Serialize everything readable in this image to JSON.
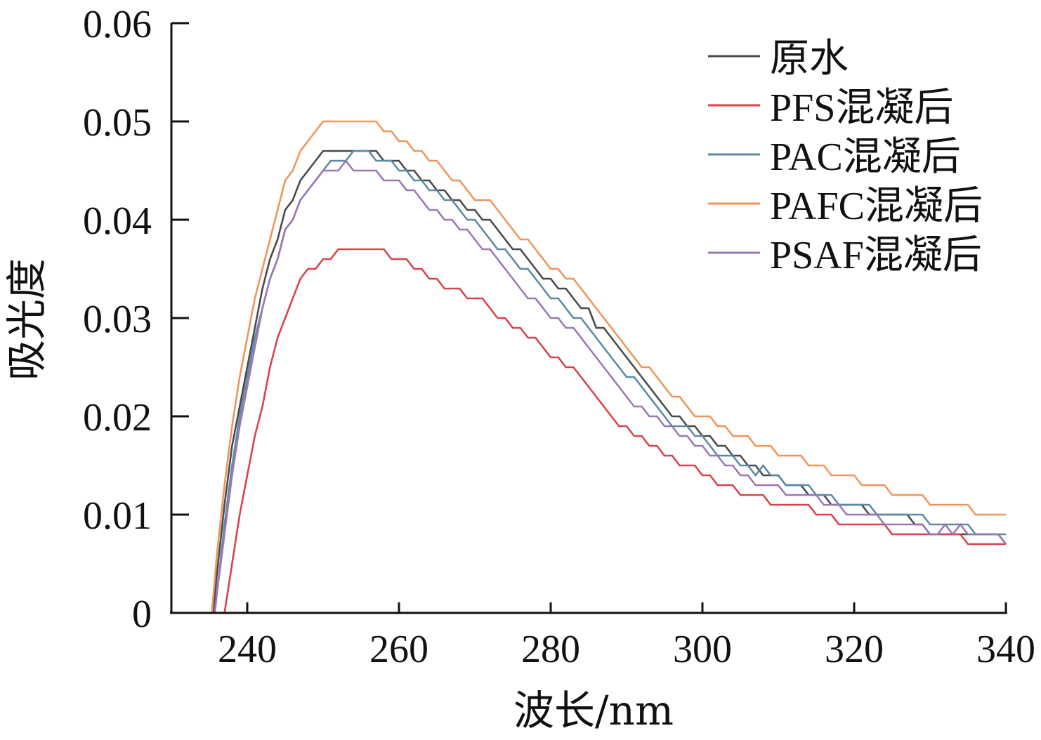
{
  "chart_data": {
    "type": "line",
    "title": "",
    "xlabel": "波长/nm",
    "ylabel": "吸光度",
    "xlim": [
      230,
      340
    ],
    "ylim": [
      0,
      0.06
    ],
    "xticks": [
      240,
      260,
      280,
      300,
      320,
      340
    ],
    "xtick_labels": [
      "240",
      "260",
      "280",
      "300",
      "320",
      "340"
    ],
    "yticks": [
      0,
      0.01,
      0.02,
      0.03,
      0.04,
      0.05,
      0.06
    ],
    "ytick_labels": [
      "0",
      "0.01",
      "0.02",
      "0.03",
      "0.04",
      "0.05",
      "0.06"
    ],
    "grid": false,
    "legend_position": "top-right",
    "x": [
      235,
      236,
      237,
      238,
      239,
      240,
      241,
      242,
      243,
      244,
      245,
      246,
      247,
      248,
      249,
      250,
      251,
      252,
      253,
      254,
      255,
      256,
      257,
      258,
      259,
      260,
      261,
      262,
      263,
      264,
      265,
      266,
      267,
      268,
      269,
      270,
      271,
      272,
      273,
      274,
      275,
      276,
      277,
      278,
      279,
      280,
      281,
      282,
      283,
      284,
      285,
      286,
      287,
      288,
      289,
      290,
      291,
      292,
      293,
      294,
      295,
      296,
      297,
      298,
      299,
      300,
      301,
      302,
      303,
      304,
      305,
      306,
      307,
      308,
      309,
      310,
      311,
      312,
      313,
      314,
      315,
      316,
      317,
      318,
      319,
      320,
      321,
      322,
      323,
      324,
      325,
      326,
      327,
      328,
      329,
      330,
      331,
      332,
      333,
      334,
      335,
      336,
      337,
      338,
      339,
      340
    ],
    "series": [
      {
        "name": "原水",
        "color": "#4a4a4a",
        "values": [
          -0.004,
          0.004,
          0.011,
          0.017,
          0.021,
          0.025,
          0.029,
          0.033,
          0.036,
          0.038,
          0.041,
          0.042,
          0.044,
          0.045,
          0.046,
          0.047,
          0.047,
          0.047,
          0.047,
          0.047,
          0.047,
          0.047,
          0.047,
          0.046,
          0.046,
          0.046,
          0.045,
          0.045,
          0.044,
          0.044,
          0.043,
          0.043,
          0.042,
          0.042,
          0.041,
          0.041,
          0.04,
          0.04,
          0.039,
          0.038,
          0.037,
          0.037,
          0.036,
          0.035,
          0.034,
          0.034,
          0.033,
          0.033,
          0.032,
          0.031,
          0.031,
          0.029,
          0.029,
          0.028,
          0.027,
          0.026,
          0.025,
          0.024,
          0.023,
          0.022,
          0.021,
          0.02,
          0.02,
          0.019,
          0.019,
          0.018,
          0.018,
          0.017,
          0.017,
          0.016,
          0.016,
          0.015,
          0.015,
          0.014,
          0.014,
          0.014,
          0.013,
          0.013,
          0.013,
          0.012,
          0.012,
          0.012,
          0.011,
          0.011,
          0.011,
          0.011,
          0.011,
          0.01,
          0.01,
          0.01,
          0.01,
          0.01,
          0.01,
          0.009,
          0.009,
          0.008,
          0.008,
          0.008,
          0.008,
          0.008,
          0.008,
          0.008,
          0.008,
          0.008,
          0.008,
          0.007
        ]
      },
      {
        "name": "PFS混凝后",
        "color": "#d9444a",
        "values": [
          -0.01,
          -0.005,
          0.0,
          0.005,
          0.01,
          0.014,
          0.018,
          0.021,
          0.025,
          0.028,
          0.03,
          0.032,
          0.034,
          0.035,
          0.035,
          0.036,
          0.036,
          0.037,
          0.037,
          0.037,
          0.037,
          0.037,
          0.037,
          0.037,
          0.036,
          0.036,
          0.036,
          0.035,
          0.035,
          0.034,
          0.034,
          0.033,
          0.033,
          0.033,
          0.032,
          0.032,
          0.032,
          0.031,
          0.03,
          0.03,
          0.029,
          0.029,
          0.028,
          0.028,
          0.027,
          0.026,
          0.026,
          0.025,
          0.025,
          0.024,
          0.023,
          0.022,
          0.021,
          0.02,
          0.019,
          0.019,
          0.018,
          0.018,
          0.017,
          0.017,
          0.016,
          0.016,
          0.015,
          0.015,
          0.015,
          0.014,
          0.014,
          0.013,
          0.013,
          0.013,
          0.012,
          0.012,
          0.012,
          0.012,
          0.011,
          0.011,
          0.011,
          0.011,
          0.011,
          0.011,
          0.01,
          0.01,
          0.01,
          0.009,
          0.009,
          0.009,
          0.009,
          0.009,
          0.009,
          0.009,
          0.008,
          0.008,
          0.008,
          0.008,
          0.008,
          0.008,
          0.008,
          0.008,
          0.008,
          0.008,
          0.007,
          0.007,
          0.007,
          0.007,
          0.007,
          0.007
        ]
      },
      {
        "name": "PAC混凝后",
        "color": "#5b8aa6",
        "values": [
          -0.005,
          0.002,
          0.009,
          0.015,
          0.02,
          0.024,
          0.028,
          0.031,
          0.034,
          0.036,
          0.039,
          0.04,
          0.042,
          0.043,
          0.044,
          0.045,
          0.046,
          0.046,
          0.046,
          0.047,
          0.047,
          0.047,
          0.046,
          0.046,
          0.046,
          0.045,
          0.045,
          0.044,
          0.044,
          0.043,
          0.043,
          0.042,
          0.042,
          0.041,
          0.04,
          0.04,
          0.039,
          0.038,
          0.037,
          0.037,
          0.036,
          0.035,
          0.035,
          0.034,
          0.033,
          0.032,
          0.032,
          0.031,
          0.03,
          0.03,
          0.029,
          0.028,
          0.027,
          0.026,
          0.025,
          0.024,
          0.024,
          0.023,
          0.022,
          0.021,
          0.02,
          0.019,
          0.019,
          0.019,
          0.018,
          0.018,
          0.017,
          0.016,
          0.016,
          0.016,
          0.015,
          0.015,
          0.014,
          0.015,
          0.014,
          0.014,
          0.013,
          0.013,
          0.013,
          0.013,
          0.012,
          0.012,
          0.012,
          0.011,
          0.011,
          0.011,
          0.011,
          0.011,
          0.01,
          0.01,
          0.01,
          0.01,
          0.01,
          0.01,
          0.01,
          0.009,
          0.009,
          0.009,
          0.009,
          0.009,
          0.009,
          0.008,
          0.008,
          0.008,
          0.008,
          0.008
        ]
      },
      {
        "name": "PAFC混凝后",
        "color": "#f0955a",
        "values": [
          -0.003,
          0.006,
          0.013,
          0.019,
          0.024,
          0.028,
          0.032,
          0.035,
          0.038,
          0.041,
          0.044,
          0.045,
          0.047,
          0.048,
          0.049,
          0.05,
          0.05,
          0.05,
          0.05,
          0.05,
          0.05,
          0.05,
          0.05,
          0.049,
          0.049,
          0.048,
          0.048,
          0.047,
          0.047,
          0.046,
          0.046,
          0.045,
          0.044,
          0.044,
          0.043,
          0.042,
          0.042,
          0.042,
          0.041,
          0.04,
          0.039,
          0.038,
          0.038,
          0.037,
          0.036,
          0.035,
          0.035,
          0.034,
          0.034,
          0.033,
          0.032,
          0.031,
          0.03,
          0.029,
          0.028,
          0.027,
          0.026,
          0.025,
          0.025,
          0.024,
          0.023,
          0.022,
          0.022,
          0.021,
          0.02,
          0.02,
          0.02,
          0.019,
          0.019,
          0.018,
          0.018,
          0.018,
          0.017,
          0.017,
          0.017,
          0.016,
          0.016,
          0.016,
          0.016,
          0.015,
          0.015,
          0.015,
          0.014,
          0.014,
          0.014,
          0.014,
          0.013,
          0.013,
          0.013,
          0.013,
          0.012,
          0.012,
          0.012,
          0.012,
          0.012,
          0.011,
          0.011,
          0.011,
          0.011,
          0.011,
          0.011,
          0.01,
          0.01,
          0.01,
          0.01,
          0.01
        ]
      },
      {
        "name": "PSAF混凝后",
        "color": "#9a78b4",
        "values": [
          -0.005,
          0.002,
          0.008,
          0.014,
          0.019,
          0.023,
          0.027,
          0.031,
          0.034,
          0.036,
          0.039,
          0.04,
          0.042,
          0.043,
          0.044,
          0.045,
          0.045,
          0.045,
          0.046,
          0.045,
          0.045,
          0.045,
          0.045,
          0.044,
          0.044,
          0.044,
          0.043,
          0.043,
          0.042,
          0.041,
          0.041,
          0.04,
          0.04,
          0.039,
          0.039,
          0.038,
          0.037,
          0.037,
          0.036,
          0.035,
          0.034,
          0.033,
          0.032,
          0.032,
          0.031,
          0.03,
          0.03,
          0.029,
          0.029,
          0.028,
          0.027,
          0.026,
          0.025,
          0.024,
          0.023,
          0.022,
          0.021,
          0.021,
          0.02,
          0.02,
          0.019,
          0.019,
          0.018,
          0.018,
          0.017,
          0.017,
          0.016,
          0.016,
          0.015,
          0.015,
          0.014,
          0.014,
          0.013,
          0.013,
          0.013,
          0.013,
          0.012,
          0.012,
          0.012,
          0.012,
          0.012,
          0.011,
          0.011,
          0.011,
          0.01,
          0.01,
          0.01,
          0.01,
          0.01,
          0.009,
          0.009,
          0.009,
          0.009,
          0.009,
          0.009,
          0.008,
          0.008,
          0.009,
          0.008,
          0.009,
          0.008,
          0.008,
          0.008,
          0.008,
          0.008,
          0.007
        ]
      }
    ]
  }
}
